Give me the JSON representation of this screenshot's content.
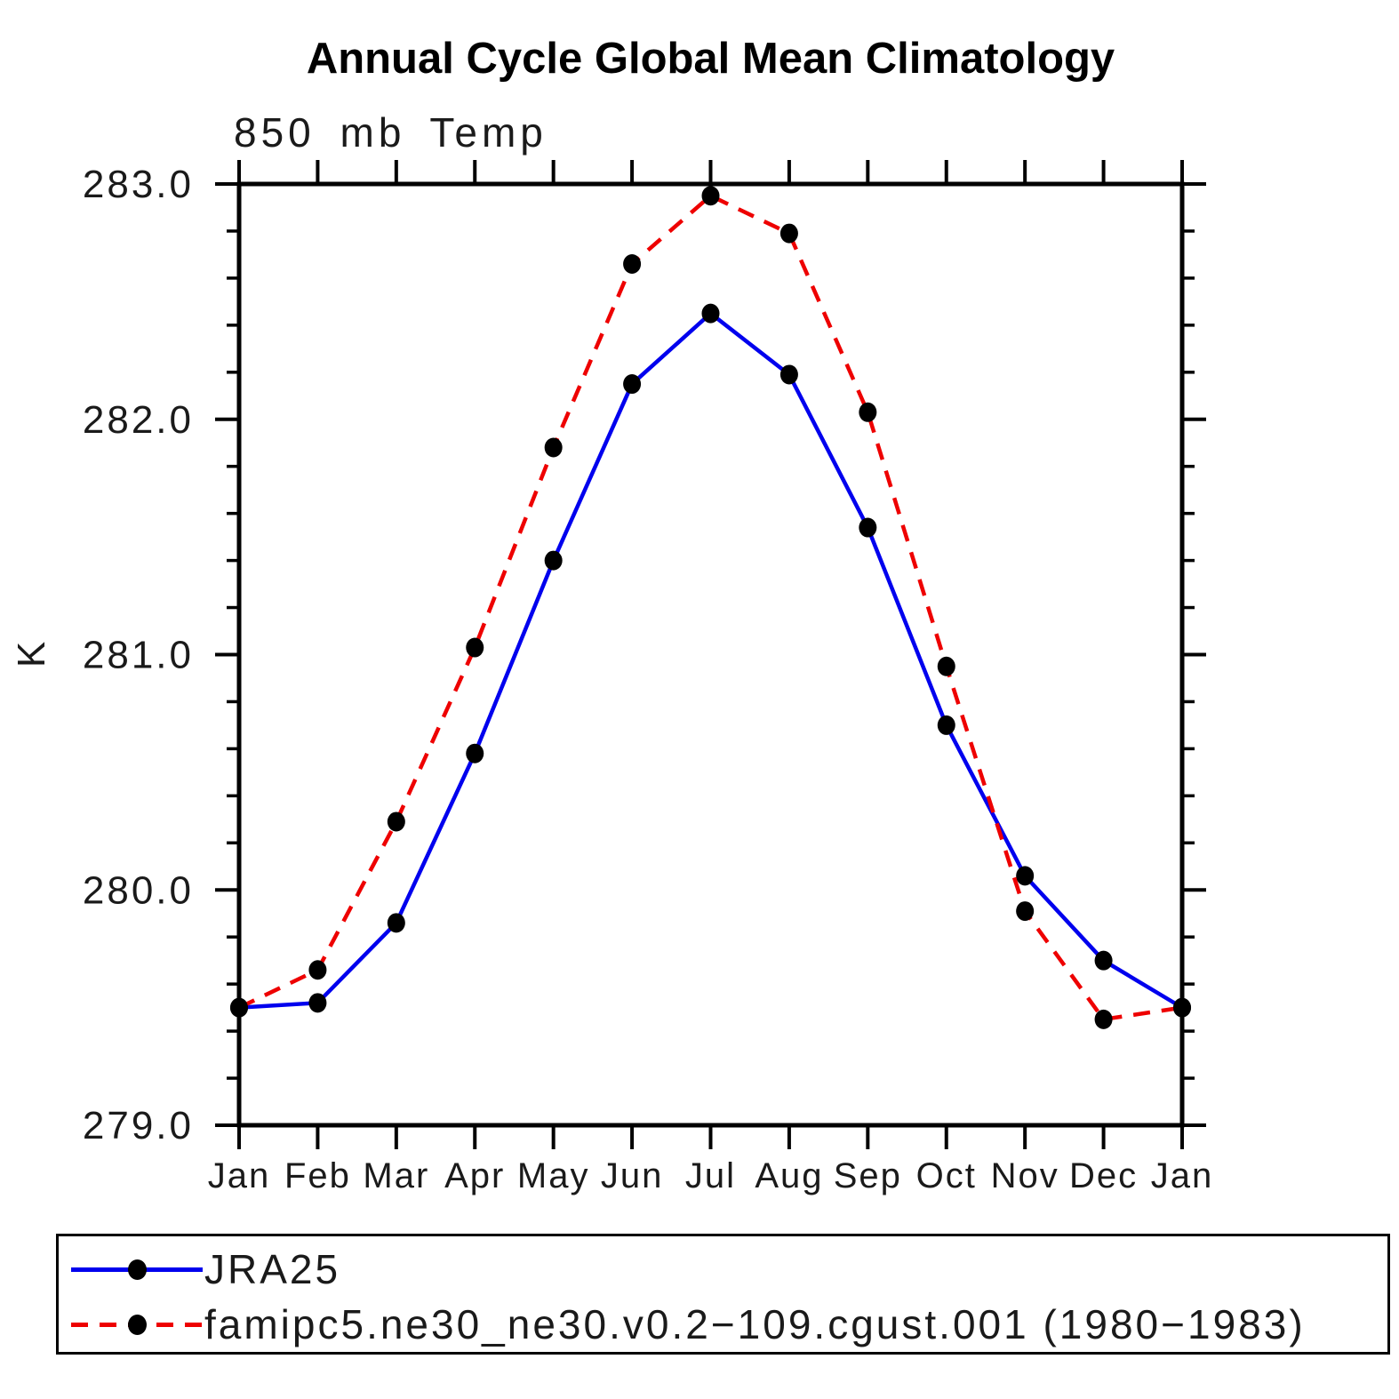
{
  "title": "Annual Cycle Global Mean Climatology",
  "subtitle": "850 mb Temp",
  "ylabel": "K",
  "legend": {
    "items": [
      {
        "label": "JRA25",
        "color": "#0000ee",
        "style": "solid"
      },
      {
        "label": "famipc5.ne30_ne30.v0.2−109.cgust.001 (1980−1983)",
        "color": "#ee0000",
        "style": "dashed"
      }
    ]
  },
  "chart_data": {
    "type": "line",
    "title": "Annual Cycle Global Mean Climatology",
    "subtitle": "850 mb Temp",
    "ylabel": "K",
    "categories": [
      "Jan",
      "Feb",
      "Mar",
      "Apr",
      "May",
      "Jun",
      "Jul",
      "Aug",
      "Sep",
      "Oct",
      "Nov",
      "Dec",
      "Jan"
    ],
    "series": [
      {
        "name": "JRA25",
        "color": "#0000ee",
        "style": "solid",
        "values": [
          279.5,
          279.52,
          279.86,
          280.58,
          281.4,
          282.15,
          282.45,
          282.19,
          281.54,
          280.7,
          280.06,
          279.7,
          279.5
        ]
      },
      {
        "name": "famipc5.ne30_ne30.v0.2−109.cgust.001 (1980−1983)",
        "color": "#ee0000",
        "style": "dashed",
        "values": [
          279.5,
          279.66,
          280.29,
          281.03,
          281.88,
          282.66,
          282.95,
          282.79,
          282.03,
          280.95,
          279.91,
          279.45,
          279.5
        ]
      }
    ],
    "marker": "black-dot",
    "ylim": [
      279.0,
      283.0
    ],
    "yticks": [
      283.0,
      282.0,
      281.0,
      280.0,
      279.0
    ],
    "y_minor_step": 0.2,
    "grid": false,
    "legend_position": "bottom"
  }
}
